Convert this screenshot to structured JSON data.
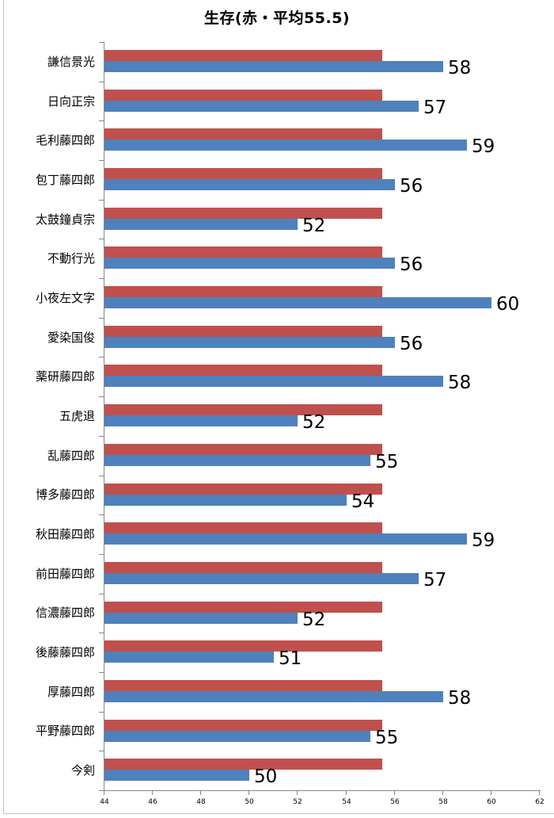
{
  "chart_data": {
    "type": "bar",
    "orientation": "horizontal",
    "title": "生存(赤・平均55.5)",
    "xlabel": "",
    "ylabel": "",
    "xlim": [
      44,
      62
    ],
    "xticks": [
      44,
      46,
      48,
      50,
      52,
      54,
      56,
      58,
      60,
      62
    ],
    "grid": false,
    "legend": null,
    "categories": [
      "謙信景光",
      "日向正宗",
      "毛利藤四郎",
      "包丁藤四郎",
      "太鼓鐘貞宗",
      "不動行光",
      "小夜左文字",
      "愛染国俊",
      "薬研藤四郎",
      "五虎退",
      "乱藤四郎",
      "博多藤四郎",
      "秋田藤四郎",
      "前田藤四郎",
      "信濃藤四郎",
      "後藤藤四郎",
      "厚藤四郎",
      "平野藤四郎",
      "今剣"
    ],
    "series": [
      {
        "name": "平均",
        "color": "#C0504D",
        "values": [
          55.5,
          55.5,
          55.5,
          55.5,
          55.5,
          55.5,
          55.5,
          55.5,
          55.5,
          55.5,
          55.5,
          55.5,
          55.5,
          55.5,
          55.5,
          55.5,
          55.5,
          55.5,
          55.5
        ]
      },
      {
        "name": "生存",
        "color": "#4F81BD",
        "values": [
          58,
          57,
          59,
          56,
          52,
          56,
          60,
          56,
          58,
          52,
          55,
          54,
          59,
          57,
          52,
          51,
          58,
          55,
          50
        ],
        "data_labels": true
      }
    ]
  }
}
